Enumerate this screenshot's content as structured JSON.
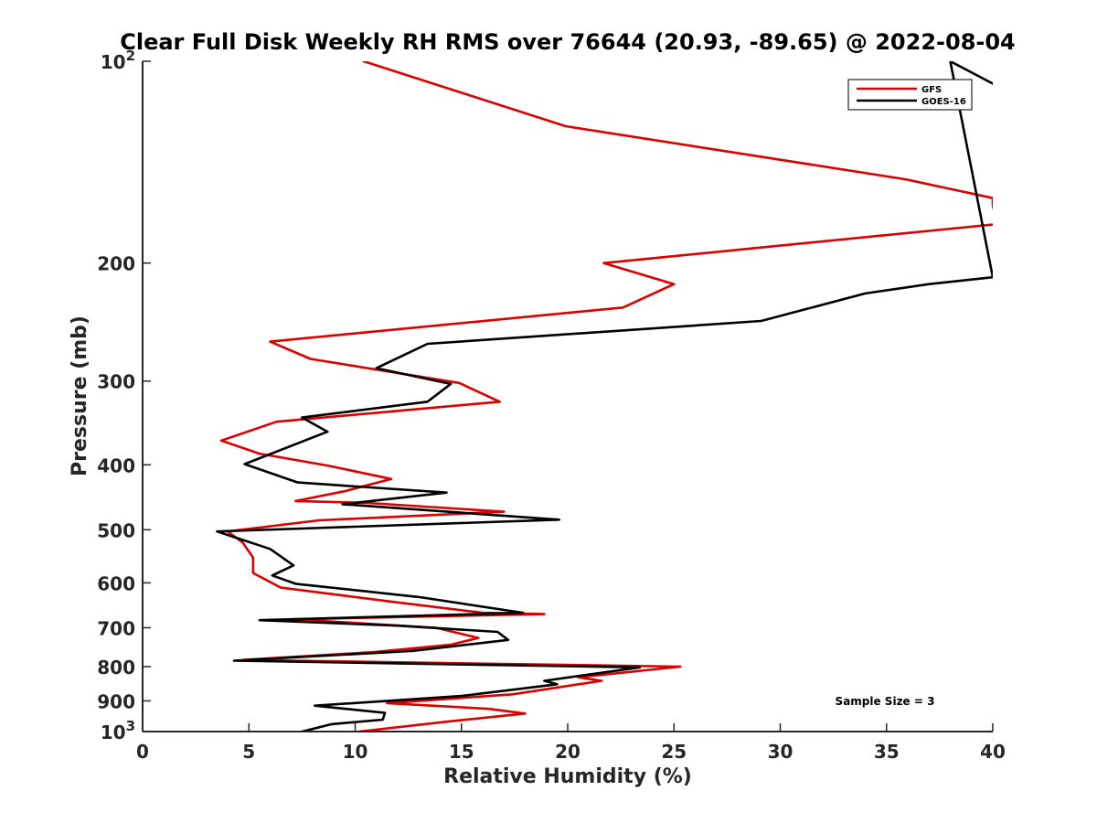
{
  "chart_data": {
    "type": "line",
    "title": "Clear Full Disk Weekly RH RMS over 76644 (20.93, -89.65) @ 2022-08-04",
    "xlabel": "Relative Humidity (%)",
    "ylabel": "Pressure (mb)",
    "xlim": [
      0,
      40
    ],
    "ylim": [
      100,
      1000
    ],
    "yscale": "log",
    "y_reversed": true,
    "x_ticks": [
      0,
      5,
      10,
      15,
      20,
      25,
      30,
      35,
      40
    ],
    "x_tick_labels": [
      "0",
      "5",
      "10",
      "15",
      "20",
      "25",
      "30",
      "35",
      "40"
    ],
    "y_ticks": [
      100,
      200,
      300,
      400,
      500,
      600,
      700,
      800,
      900,
      1000
    ],
    "y_tick_labels": [
      {
        "base": "10",
        "exp": "2"
      },
      {
        "base": "200",
        "exp": ""
      },
      {
        "base": "300",
        "exp": ""
      },
      {
        "base": "400",
        "exp": ""
      },
      {
        "base": "500",
        "exp": ""
      },
      {
        "base": "600",
        "exp": ""
      },
      {
        "base": "700",
        "exp": ""
      },
      {
        "base": "800",
        "exp": ""
      },
      {
        "base": "900",
        "exp": ""
      },
      {
        "base": "10",
        "exp": "3"
      }
    ],
    "legend_position": "top-right",
    "annotation": "Sample Size = 3",
    "series": [
      {
        "name": "GFS",
        "color": "#dd0000",
        "points": [
          [
            10.4,
            100
          ],
          [
            19.9,
            125
          ],
          [
            35.9,
            150
          ],
          [
            40.0,
            160
          ],
          [
            40.0,
            164
          ],
          [
            40.2,
            175
          ],
          [
            21.7,
            200
          ],
          [
            25.0,
            215
          ],
          [
            22.6,
            233
          ],
          [
            6.0,
            262
          ],
          [
            7.9,
            278
          ],
          [
            14.9,
            302
          ],
          [
            16.8,
            322
          ],
          [
            6.3,
            345
          ],
          [
            3.7,
            368
          ],
          [
            5.5,
            385
          ],
          [
            8.7,
            401
          ],
          [
            11.7,
            420
          ],
          [
            9.5,
            438
          ],
          [
            7.2,
            453
          ],
          [
            10.6,
            456
          ],
          [
            17.0,
            470
          ],
          [
            8.3,
            484
          ],
          [
            4.0,
            503
          ],
          [
            4.7,
            522
          ],
          [
            5.2,
            550
          ],
          [
            5.2,
            580
          ],
          [
            6.5,
            610
          ],
          [
            11.7,
            640
          ],
          [
            16.0,
            665
          ],
          [
            18.9,
            668
          ],
          [
            7.1,
            680
          ],
          [
            13.8,
            700
          ],
          [
            15.8,
            725
          ],
          [
            14.5,
            742
          ],
          [
            10.9,
            761
          ],
          [
            4.7,
            782
          ],
          [
            25.3,
            800
          ],
          [
            20.5,
            830
          ],
          [
            21.6,
            840
          ],
          [
            17.4,
            880
          ],
          [
            11.5,
            907
          ],
          [
            16.3,
            925
          ],
          [
            18.0,
            940
          ],
          [
            14.5,
            965
          ],
          [
            10.2,
            1000
          ]
        ]
      },
      {
        "name": "GOES-16",
        "color": "#000000",
        "points": [
          [
            40.0,
            108
          ],
          [
            38.0,
            100
          ],
          [
            40.0,
            210
          ],
          [
            37.0,
            215
          ],
          [
            34.0,
            222
          ],
          [
            29.1,
            244
          ],
          [
            13.4,
            264
          ],
          [
            11.0,
            287
          ],
          [
            14.5,
            303
          ],
          [
            13.4,
            322
          ],
          [
            7.5,
            340
          ],
          [
            8.7,
            357
          ],
          [
            4.8,
            399
          ],
          [
            7.3,
            425
          ],
          [
            14.3,
            440
          ],
          [
            9.4,
            458
          ],
          [
            19.6,
            483
          ],
          [
            3.5,
            503
          ],
          [
            6.0,
            534
          ],
          [
            7.1,
            565
          ],
          [
            6.1,
            585
          ],
          [
            7.2,
            602
          ],
          [
            13.0,
            630
          ],
          [
            17.9,
            665
          ],
          [
            5.5,
            682
          ],
          [
            12.0,
            695
          ],
          [
            16.7,
            710
          ],
          [
            17.2,
            730
          ],
          [
            12.7,
            758
          ],
          [
            4.3,
            784
          ],
          [
            23.4,
            802
          ],
          [
            18.9,
            840
          ],
          [
            19.5,
            850
          ],
          [
            15.0,
            885
          ],
          [
            8.1,
            915
          ],
          [
            11.4,
            938
          ],
          [
            11.3,
            960
          ],
          [
            8.9,
            975
          ],
          [
            7.5,
            1000
          ]
        ]
      }
    ]
  }
}
